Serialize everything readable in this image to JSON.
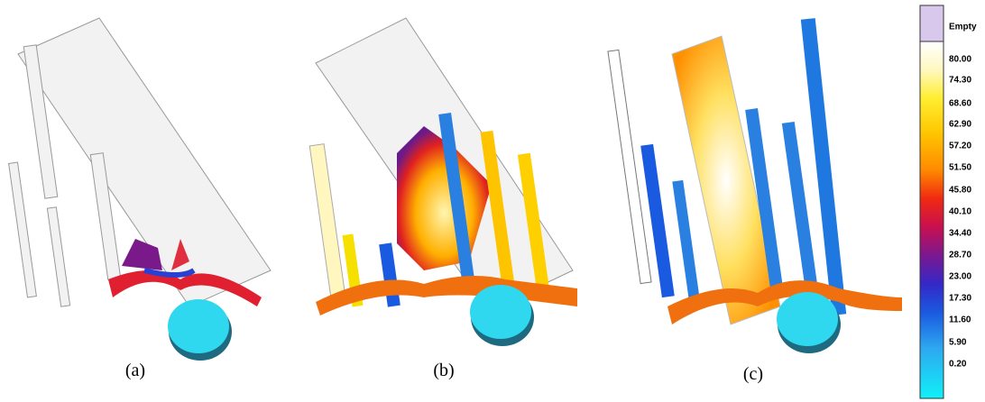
{
  "panels": [
    {
      "label": "(a)"
    },
    {
      "label": "(b)"
    },
    {
      "label": "(c)"
    }
  ],
  "legend": {
    "labels": [
      "Empty",
      "80.00",
      "74.30",
      "68.60",
      "62.90",
      "57.20",
      "51.50",
      "45.80",
      "40.10",
      "34.40",
      "28.70",
      "23.00",
      "17.30",
      "11.60",
      "5.90",
      "0.20"
    ]
  }
}
